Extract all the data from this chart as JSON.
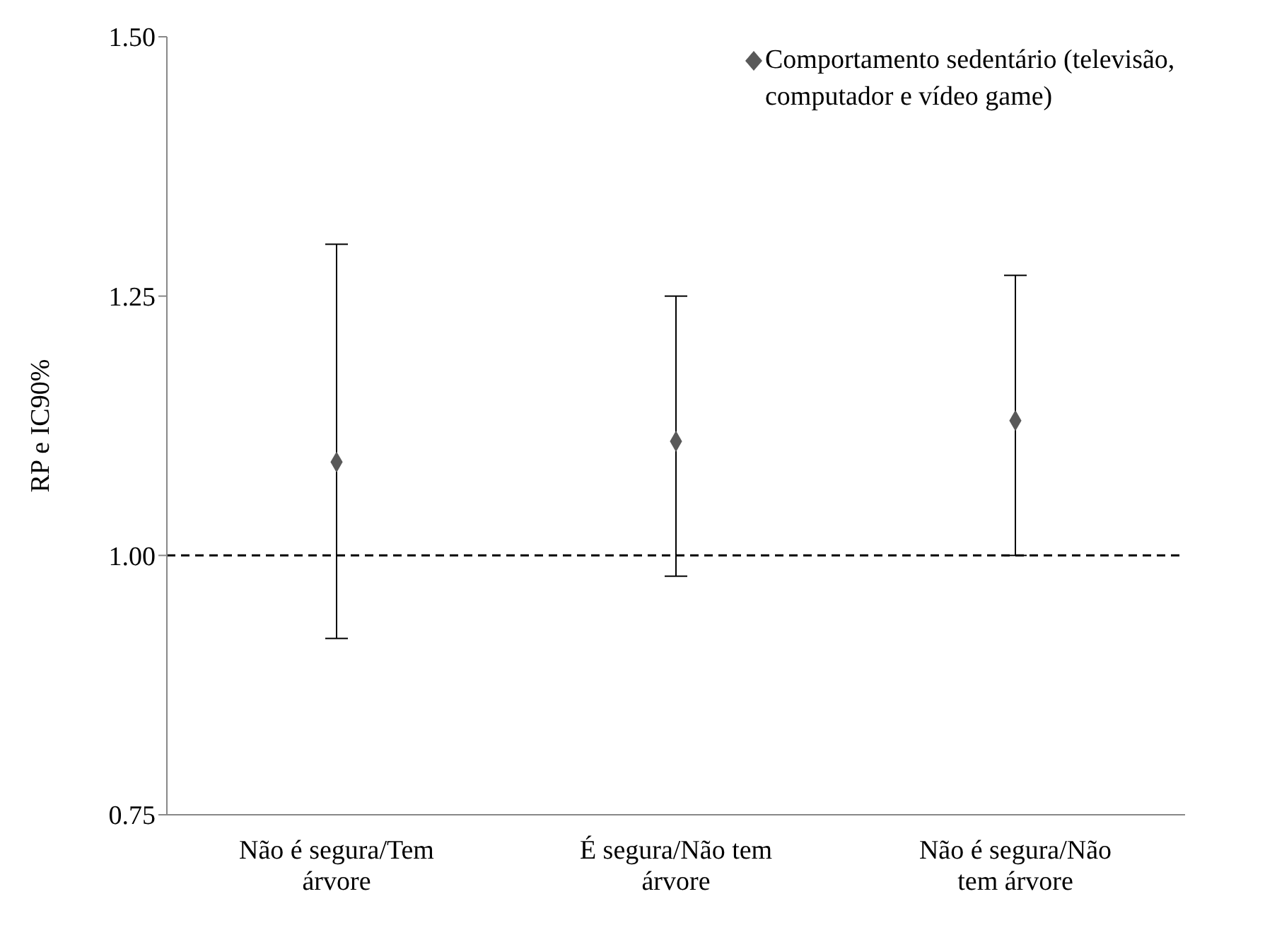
{
  "chart_data": {
    "type": "scatter",
    "ylabel": "RP e  IC90%",
    "categories": [
      "Não é segura/Tem árvore",
      "É segura/Não tem árvore",
      "Não é segura/Não tem árvore"
    ],
    "series": [
      {
        "name": "Comportamento sedentário (televisão, computador e vídeo game)",
        "color": "#595959",
        "values": [
          1.09,
          1.11,
          1.13
        ],
        "errors": [
          [
            0.92,
            1.3
          ],
          [
            0.98,
            1.25
          ],
          [
            1.0,
            1.27
          ]
        ]
      }
    ],
    "ylim": [
      0.75,
      1.5
    ],
    "yticks": [
      {
        "value": 0.75,
        "label": "0.75"
      },
      {
        "value": 1.0,
        "label": "1.00"
      },
      {
        "value": 1.25,
        "label": "1.25"
      },
      {
        "value": 1.5,
        "label": "1.50"
      }
    ],
    "ref_lines": [
      {
        "axis": "y",
        "value": 1.0,
        "color": "#000000",
        "line_style": "dashed"
      }
    ],
    "grid": false,
    "legend": "top right",
    "marker": "diamond"
  }
}
